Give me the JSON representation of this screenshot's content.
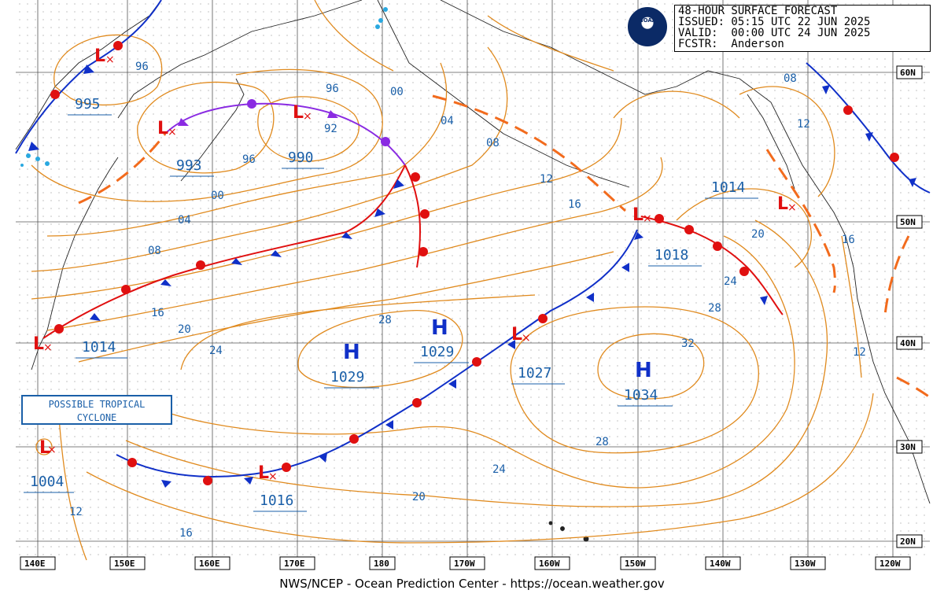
{
  "header": {
    "line1": "48-HOUR SURFACE FORECAST",
    "line2": "ISSUED: 05:15 UTC 22 JUN 2025",
    "line3": "VALID:  00:00 UTC 24 JUN 2025",
    "line4": "FCSTR:  Anderson"
  },
  "logo_text": "NOAA",
  "footer": "NWS/NCEP - Ocean Prediction Center - https://ocean.weather.gov",
  "tc_box": {
    "line1": "POSSIBLE TROPICAL",
    "line2": "CYCLONE"
  },
  "longitude_labels": [
    "140E",
    "150E",
    "160E",
    "170E",
    "180",
    "170W",
    "160W",
    "150W",
    "140W",
    "130W",
    "120W"
  ],
  "latitude_labels": [
    "60N",
    "50N",
    "40N",
    "30N",
    "20N"
  ],
  "isobar_labels": [
    "96",
    "00",
    "96",
    "92",
    "96",
    "04",
    "08",
    "00",
    "04",
    "12",
    "16",
    "08",
    "16",
    "20",
    "24",
    "28",
    "28",
    "32",
    "24",
    "28",
    "20",
    "16",
    "12",
    "16",
    "24",
    "20",
    "12",
    "08",
    "12"
  ],
  "pressure_centers": [
    {
      "type": "L",
      "value": "995"
    },
    {
      "type": "L",
      "value": "993"
    },
    {
      "type": "L",
      "value": "990"
    },
    {
      "type": "L",
      "value": "1014"
    },
    {
      "type": "L",
      "value": "1016"
    },
    {
      "type": "L",
      "value": "1004"
    },
    {
      "type": "L",
      "value": "1027"
    },
    {
      "type": "L",
      "value": "1018"
    },
    {
      "type": "L",
      "value": ""
    },
    {
      "type": "H",
      "value": "1029"
    },
    {
      "type": "H",
      "value": "1029"
    },
    {
      "type": "H",
      "value": "1034"
    },
    {
      "type": "",
      "value": "1014"
    }
  ],
  "colors": {
    "isobar": "#e08a1e",
    "warm_front": "#e01010",
    "cold_front": "#1030c8",
    "occluded_front": "#8a2be2",
    "trough": "#f26b1d",
    "coast": "#222222",
    "grid": "#555555",
    "label": "#1a5fa8"
  }
}
